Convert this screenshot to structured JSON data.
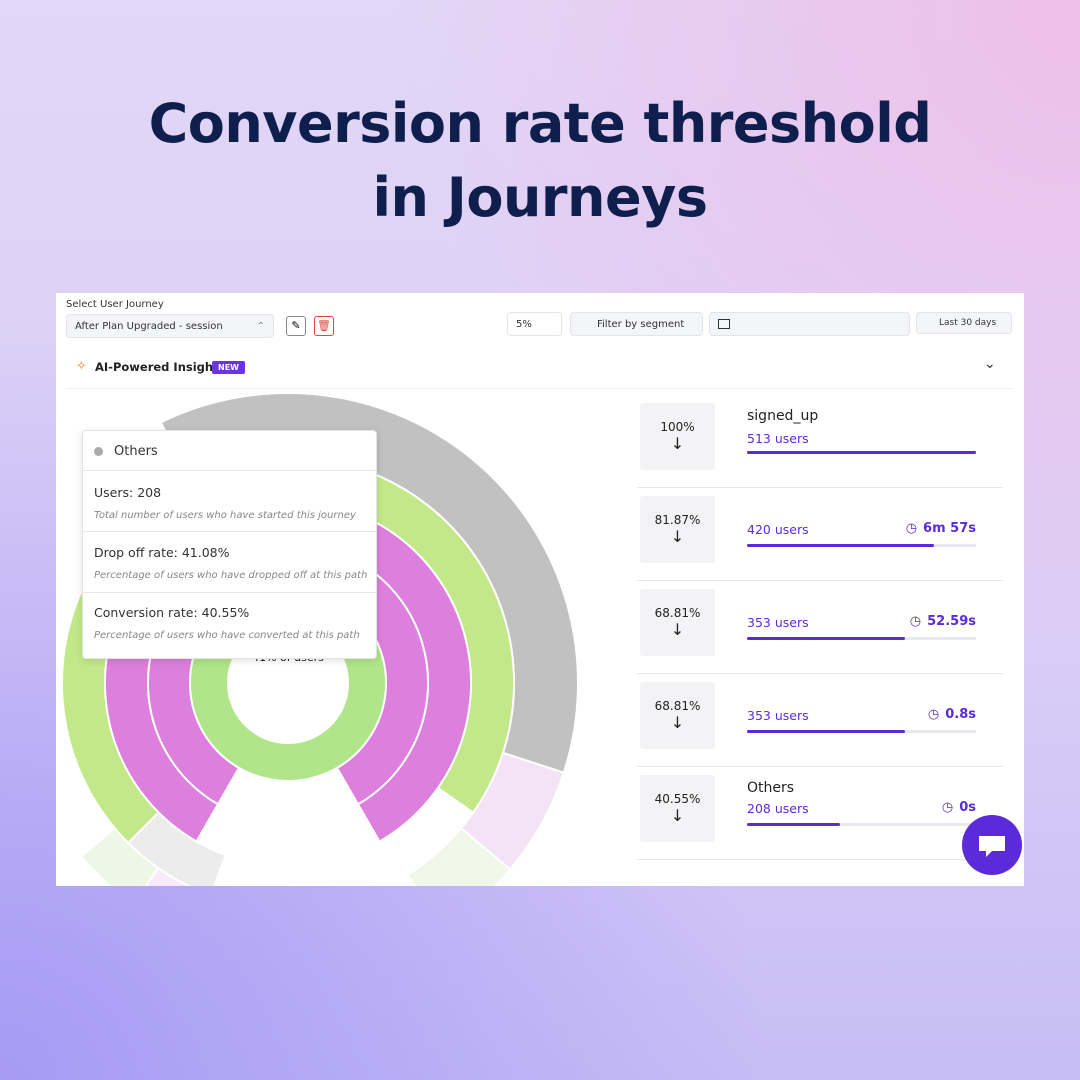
{
  "header": {
    "title_lines": [
      "Conversion rate threshold",
      "in Journeys"
    ]
  },
  "toolbar": {
    "label": "Select User Journey",
    "journey": "After Plan Upgraded - session",
    "threshold": "5%",
    "segment": "Filter by segment",
    "date_range": "Last 30 days"
  },
  "insights": {
    "label": "AI-Powered Insights",
    "badge": "NEW"
  },
  "sunburst": {
    "center_label": "41% of users"
  },
  "tooltip": {
    "title": "Others",
    "items": [
      {
        "label": "Users: 208",
        "description": "Total number of users who have started this journey"
      },
      {
        "label": "Drop off rate: 41.08%",
        "description": "Percentage of users who have dropped off at this path"
      },
      {
        "label": "Conversion rate: 40.55%",
        "description": "Percentage of users who have converted at this path"
      }
    ]
  },
  "steps": [
    {
      "percent": "100%",
      "name": "signed_up",
      "users": "513 users",
      "time": null
    },
    {
      "percent": "81.87%",
      "name": null,
      "users": "420 users",
      "time": "6m 57s"
    },
    {
      "percent": "68.81%",
      "name": null,
      "users": "353 users",
      "time": "52.59s"
    },
    {
      "percent": "68.81%",
      "name": null,
      "users": "353 users",
      "time": "0.8s"
    },
    {
      "percent": "40.55%",
      "name": "Others",
      "users": "208 users",
      "time": "0s"
    }
  ]
}
